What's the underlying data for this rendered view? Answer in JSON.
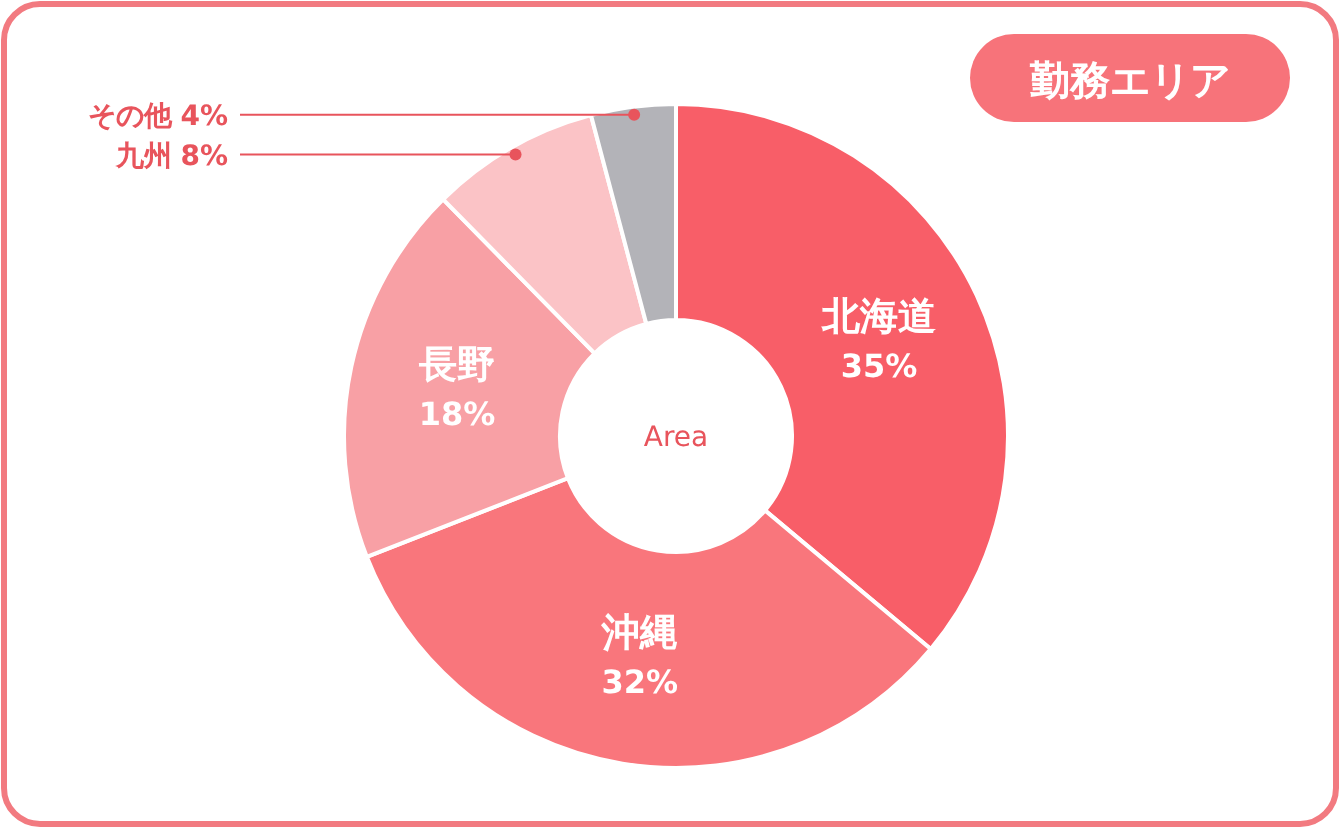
{
  "chart_data": {
    "type": "donut",
    "title": "勤務エリア",
    "annotations": [
      "Area"
    ],
    "categories": [
      "北海道",
      "沖縄",
      "長野",
      "九州",
      "その他"
    ],
    "values": [
      35,
      32,
      18,
      8,
      4
    ],
    "colors": [
      "#f85e68",
      "#f9767c",
      "#f8a0a5",
      "#fbc3c6",
      "#b3b3b8"
    ],
    "value_labels": [
      "35%",
      "32%",
      "18%",
      "8%",
      "4%"
    ]
  }
}
